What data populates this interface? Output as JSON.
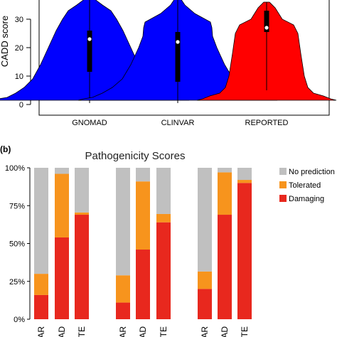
{
  "panel_b_label": "(b)",
  "chart_data": [
    {
      "type": "violin",
      "ylabel": "CADD score",
      "ylim": [
        -2,
        38
      ],
      "yticks": [
        0,
        10,
        20,
        30
      ],
      "categories": [
        "GNOMAD",
        "CLINVAR",
        "REPORTED"
      ],
      "colors": [
        "#0000ff",
        "#0000ff",
        "#ff0000"
      ],
      "series": [
        {
          "category": "GNOMAD",
          "min": 0.5,
          "q1": 11.5,
          "median": 23,
          "q3": 26,
          "max": 38
        },
        {
          "category": "CLINVAR",
          "min": 0.5,
          "q1": 8,
          "median": 22,
          "q3": 25.5,
          "max": 38
        },
        {
          "category": "REPORTED",
          "min": 5,
          "q1": 25.5,
          "median": 27,
          "q3": 33,
          "max": 36
        }
      ]
    },
    {
      "type": "bar",
      "stacked": true,
      "title": "Pathogenicity Scores",
      "ylim": [
        0,
        100
      ],
      "yticks": [
        "0%",
        "25%",
        "50%",
        "75%",
        "100%"
      ],
      "categories": [
        "AR",
        "AD",
        "TE",
        "AR",
        "AD",
        "TE",
        "AR",
        "AD",
        "TE"
      ],
      "legend_position": "right",
      "series": [
        {
          "name": "Damaging",
          "color": "#e8281e",
          "values": [
            16,
            54,
            69,
            11,
            46,
            64,
            20,
            69,
            90
          ]
        },
        {
          "name": "Tolerated",
          "color": "#f7941d",
          "values": [
            14,
            42,
            1.5,
            18,
            45,
            5.5,
            11.5,
            28,
            2
          ]
        },
        {
          "name": "No prediction",
          "color": "#c0c0c0",
          "values": [
            70,
            4,
            29.5,
            71,
            9,
            30.5,
            68.5,
            3,
            8
          ]
        }
      ],
      "legend": [
        "No prediction",
        "Tolerated",
        "Damaging"
      ]
    }
  ]
}
